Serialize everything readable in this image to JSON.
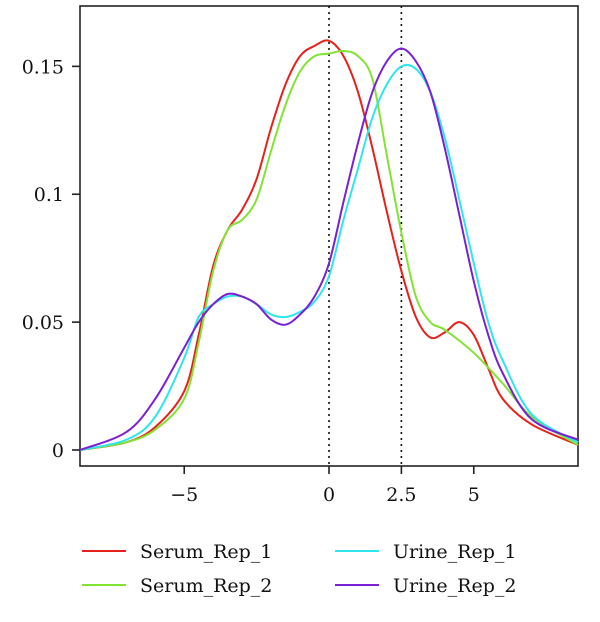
{
  "chart_data": {
    "type": "line",
    "title": "",
    "xlabel": "",
    "ylabel": "",
    "xlim": [
      -8.6,
      8.6
    ],
    "ylim": [
      0,
      0.165
    ],
    "x_ticks": [
      {
        "value": -5,
        "label": "−5"
      },
      {
        "value": 0,
        "label": "0"
      },
      {
        "value": 2.5,
        "label": "2.5"
      },
      {
        "value": 5,
        "label": "5"
      }
    ],
    "y_ticks": [
      {
        "value": 0,
        "label": "0"
      },
      {
        "value": 0.05,
        "label": "0.05"
      },
      {
        "value": 0.1,
        "label": "0.1"
      },
      {
        "value": 0.15,
        "label": "0.15"
      }
    ],
    "reference_lines_x": [
      0,
      2.5
    ],
    "grid": false,
    "legend_position": "bottom",
    "series": [
      {
        "name": "Serum_Rep_1",
        "color": "#e8201a",
        "points": [
          [
            -8.6,
            0.0
          ],
          [
            -7,
            0.003
          ],
          [
            -6,
            0.009
          ],
          [
            -5,
            0.023
          ],
          [
            -4.5,
            0.045
          ],
          [
            -4,
            0.072
          ],
          [
            -3.5,
            0.086
          ],
          [
            -3,
            0.094
          ],
          [
            -2.5,
            0.106
          ],
          [
            -2,
            0.126
          ],
          [
            -1.5,
            0.143
          ],
          [
            -1,
            0.154
          ],
          [
            -0.5,
            0.158
          ],
          [
            0,
            0.16
          ],
          [
            0.5,
            0.154
          ],
          [
            1,
            0.14
          ],
          [
            1.5,
            0.118
          ],
          [
            2,
            0.093
          ],
          [
            2.5,
            0.07
          ],
          [
            3,
            0.052
          ],
          [
            3.5,
            0.044
          ],
          [
            4,
            0.046
          ],
          [
            4.5,
            0.05
          ],
          [
            5,
            0.045
          ],
          [
            5.5,
            0.032
          ],
          [
            6,
            0.02
          ],
          [
            7,
            0.01
          ],
          [
            8.6,
            0.002
          ]
        ]
      },
      {
        "name": "Serum_Rep_2",
        "color": "#82e432",
        "points": [
          [
            -8.6,
            0.0
          ],
          [
            -7,
            0.003
          ],
          [
            -6,
            0.008
          ],
          [
            -5,
            0.02
          ],
          [
            -4.5,
            0.042
          ],
          [
            -4,
            0.07
          ],
          [
            -3.5,
            0.086
          ],
          [
            -3,
            0.09
          ],
          [
            -2.5,
            0.098
          ],
          [
            -2,
            0.117
          ],
          [
            -1.5,
            0.135
          ],
          [
            -1,
            0.148
          ],
          [
            -0.5,
            0.154
          ],
          [
            0,
            0.155
          ],
          [
            0.5,
            0.156
          ],
          [
            1,
            0.154
          ],
          [
            1.5,
            0.145
          ],
          [
            2,
            0.115
          ],
          [
            2.5,
            0.085
          ],
          [
            3,
            0.06
          ],
          [
            3.5,
            0.05
          ],
          [
            4,
            0.047
          ],
          [
            5,
            0.038
          ],
          [
            6,
            0.026
          ],
          [
            7,
            0.013
          ],
          [
            8.6,
            0.002
          ]
        ]
      },
      {
        "name": "Urine_Rep_1",
        "color": "#2ee6ee",
        "points": [
          [
            -8.6,
            0.0
          ],
          [
            -7,
            0.004
          ],
          [
            -6,
            0.013
          ],
          [
            -5,
            0.036
          ],
          [
            -4.5,
            0.052
          ],
          [
            -4,
            0.057
          ],
          [
            -3.5,
            0.06
          ],
          [
            -3,
            0.06
          ],
          [
            -2.5,
            0.057
          ],
          [
            -2,
            0.053
          ],
          [
            -1.5,
            0.052
          ],
          [
            -1,
            0.054
          ],
          [
            -0.5,
            0.058
          ],
          [
            0,
            0.068
          ],
          [
            0.5,
            0.09
          ],
          [
            1,
            0.11
          ],
          [
            1.5,
            0.13
          ],
          [
            2,
            0.143
          ],
          [
            2.5,
            0.15
          ],
          [
            3,
            0.149
          ],
          [
            3.5,
            0.14
          ],
          [
            4,
            0.122
          ],
          [
            4.5,
            0.098
          ],
          [
            5,
            0.073
          ],
          [
            5.5,
            0.05
          ],
          [
            6,
            0.035
          ],
          [
            7,
            0.014
          ],
          [
            8.6,
            0.003
          ]
        ]
      },
      {
        "name": "Urine_Rep_2",
        "color": "#7b1fd4",
        "points": [
          [
            -8.6,
            0.0
          ],
          [
            -7,
            0.007
          ],
          [
            -6,
            0.02
          ],
          [
            -5,
            0.04
          ],
          [
            -4.5,
            0.05
          ],
          [
            -4,
            0.057
          ],
          [
            -3.5,
            0.061
          ],
          [
            -3,
            0.06
          ],
          [
            -2.5,
            0.057
          ],
          [
            -2,
            0.051
          ],
          [
            -1.5,
            0.049
          ],
          [
            -1,
            0.053
          ],
          [
            -0.5,
            0.06
          ],
          [
            0,
            0.073
          ],
          [
            0.5,
            0.097
          ],
          [
            1,
            0.12
          ],
          [
            1.5,
            0.14
          ],
          [
            2,
            0.152
          ],
          [
            2.5,
            0.157
          ],
          [
            3,
            0.152
          ],
          [
            3.5,
            0.14
          ],
          [
            4,
            0.118
          ],
          [
            4.5,
            0.092
          ],
          [
            5,
            0.066
          ],
          [
            5.5,
            0.045
          ],
          [
            6,
            0.03
          ],
          [
            7,
            0.012
          ],
          [
            8.6,
            0.004
          ]
        ]
      }
    ]
  }
}
